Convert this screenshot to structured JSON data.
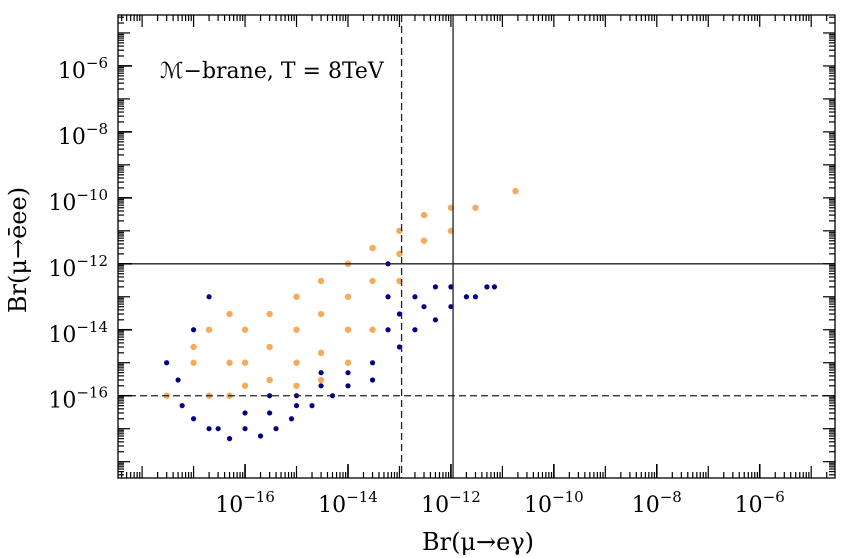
{
  "chart_data": {
    "type": "scatter",
    "annotation": "ℳ−brane, T = 8TeV",
    "xlabel": "Br(μ→eγ)",
    "ylabel": "Br(μ→ēee)",
    "xscale": "log",
    "yscale": "log",
    "xlim": [
      3.4e-19,
      2.9e-05
    ],
    "ylim": [
      3.2e-19,
      3.5e-05
    ],
    "xticks": [
      {
        "value": 1e-16,
        "label": "10−16"
      },
      {
        "value": 1e-14,
        "label": "10−14"
      },
      {
        "value": 1e-12,
        "label": "10−12"
      },
      {
        "value": 1e-10,
        "label": "10−10"
      },
      {
        "value": 1e-08,
        "label": "10−8"
      },
      {
        "value": 1e-06,
        "label": "10−6"
      }
    ],
    "yticks": [
      {
        "value": 1e-16,
        "label": "10−16"
      },
      {
        "value": 1e-14,
        "label": "10−14"
      },
      {
        "value": 1e-12,
        "label": "10−12"
      },
      {
        "value": 1e-10,
        "label": "10−10"
      },
      {
        "value": 1e-08,
        "label": "10−8"
      },
      {
        "value": 1e-06,
        "label": "10−6"
      }
    ],
    "vlines": [
      {
        "value": 1.1e-13,
        "style": "dashed"
      },
      {
        "value": 1.1e-12,
        "style": "solid"
      }
    ],
    "hlines": [
      {
        "value": 1e-12,
        "style": "solid"
      },
      {
        "value": 1e-16,
        "style": "dashed"
      }
    ],
    "series": [
      {
        "color": "#00008b",
        "x": [
          1e-17,
          3e-17,
          1e-16,
          1e-16,
          3e-16,
          3e-16,
          1e-15,
          1e-15,
          3e-15,
          3e-15,
          1e-14,
          1e-14,
          3e-14,
          3e-14,
          6e-14,
          6e-14,
          6e-14,
          1e-13,
          1e-13,
          1e-13,
          2e-13,
          2e-13,
          3e-13,
          5e-13,
          5e-13,
          1e-12,
          1e-12,
          2e-12,
          3e-12,
          5e-12,
          7e-12,
          5e-18,
          1e-17,
          3e-18,
          2e-17,
          6e-18,
          2e-17,
          5e-17,
          2e-16,
          4e-16,
          8e-16,
          2e-15,
          5e-15
        ],
        "y": [
          2e-17,
          1e-17,
          1e-17,
          3e-17,
          3e-17,
          1e-16,
          1e-16,
          5e-17,
          2e-16,
          5e-16,
          5e-16,
          2e-16,
          1e-15,
          3e-16,
          1e-12,
          1e-13,
          1e-14,
          3e-14,
          3e-13,
          3e-15,
          1e-14,
          1e-13,
          5e-14,
          2e-13,
          2e-14,
          5e-14,
          2e-13,
          1e-13,
          1e-13,
          2e-13,
          2e-13,
          3e-16,
          1e-14,
          1e-15,
          1e-13,
          5e-17,
          1e-17,
          5e-18,
          6e-18,
          1e-17,
          2e-17,
          5e-17,
          1e-16
        ]
      },
      {
        "color": "#f7a95c",
        "x": [
          3e-18,
          1e-17,
          1e-17,
          2e-17,
          2e-17,
          5e-17,
          5e-17,
          5e-17,
          1e-16,
          1e-16,
          1e-16,
          3e-16,
          3e-16,
          3e-16,
          1e-15,
          1e-15,
          1e-15,
          1e-15,
          3e-15,
          3e-15,
          3e-15,
          3e-15,
          1e-14,
          1e-14,
          1e-14,
          1e-14,
          3e-14,
          3e-14,
          3e-14,
          1e-13,
          1e-13,
          1e-13,
          3e-13,
          3e-13,
          1e-12,
          1e-12,
          3e-12,
          1.8e-11
        ],
        "y": [
          1e-16,
          1e-15,
          3e-15,
          1e-14,
          1e-16,
          3e-14,
          1e-15,
          1e-16,
          1e-14,
          1e-15,
          2e-16,
          3e-14,
          3e-15,
          3e-16,
          1e-13,
          1e-14,
          1e-15,
          2e-16,
          3e-13,
          3e-14,
          2e-15,
          3e-16,
          1e-12,
          1e-13,
          1e-14,
          1e-15,
          3e-12,
          3e-13,
          1e-14,
          1e-11,
          2e-12,
          3e-13,
          3e-11,
          5e-12,
          1e-11,
          5e-11,
          5e-11,
          1.6e-10
        ]
      }
    ]
  }
}
